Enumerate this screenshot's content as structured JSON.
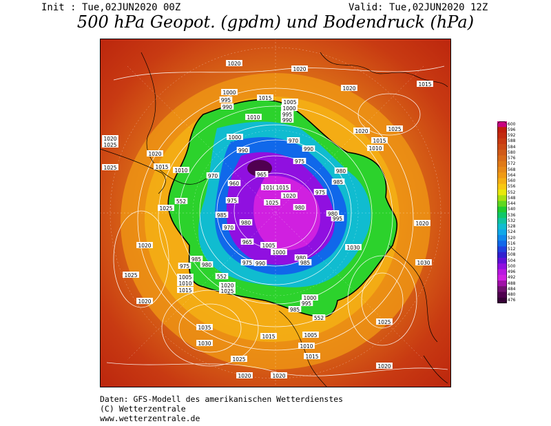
{
  "header": {
    "init": "Init : Tue,02JUN2020 00Z",
    "valid": "Valid: Tue,02JUN2020 12Z",
    "title": "500 hPa Geopot. (gpdm) und Bodendruck (hPa)"
  },
  "colorbar": {
    "levels": [
      "600",
      "596",
      "592",
      "588",
      "584",
      "580",
      "576",
      "572",
      "568",
      "564",
      "560",
      "556",
      "552",
      "548",
      "544",
      "540",
      "536",
      "532",
      "528",
      "524",
      "520",
      "516",
      "512",
      "508",
      "504",
      "500",
      "496",
      "492",
      "488",
      "484",
      "480",
      "476"
    ],
    "colors": [
      "#c90080",
      "#bf1e0d",
      "#c22a10",
      "#c83a12",
      "#cc4a15",
      "#d05a18",
      "#d86a18",
      "#e07a18",
      "#e88a18",
      "#f09a14",
      "#f5b014",
      "#f8c812",
      "#e8e80a",
      "#a8e010",
      "#60d820",
      "#20cc30",
      "#10c868",
      "#10c4a0",
      "#10bcd0",
      "#10a8e8",
      "#1088ec",
      "#1068ea",
      "#2040e0",
      "#3020d0",
      "#6010d8",
      "#9010e0",
      "#b818e0",
      "#d020e0",
      "#a010a8",
      "#701070",
      "#500050",
      "#380038"
    ]
  },
  "map": {
    "labels": [
      "1000",
      "1005",
      "1010",
      "1015",
      "1020",
      "1025",
      "1030",
      "1035",
      "995",
      "990",
      "985",
      "980",
      "975",
      "970",
      "965",
      "960",
      "955",
      "552"
    ],
    "pressure_labels": [
      {
        "text": "1020"
      },
      {
        "text": "1020"
      },
      {
        "text": "1020"
      },
      {
        "text": "1015"
      },
      {
        "text": "1000"
      },
      {
        "text": "995"
      },
      {
        "text": "990"
      },
      {
        "text": "1015"
      },
      {
        "text": "1005"
      },
      {
        "text": "1000"
      },
      {
        "text": "995"
      },
      {
        "text": "990"
      },
      {
        "text": "1010"
      },
      {
        "text": "1020"
      },
      {
        "text": "1025"
      },
      {
        "text": "1015"
      },
      {
        "text": "1010"
      },
      {
        "text": "1020"
      },
      {
        "text": "1025"
      },
      {
        "text": "1020"
      },
      {
        "text": "1015"
      },
      {
        "text": "1010"
      },
      {
        "text": "1025"
      },
      {
        "text": "1000"
      },
      {
        "text": "990"
      },
      {
        "text": "970"
      },
      {
        "text": "990"
      },
      {
        "text": "975"
      },
      {
        "text": "965"
      },
      {
        "text": "970"
      },
      {
        "text": "960"
      },
      {
        "text": "975"
      },
      {
        "text": "1010"
      },
      {
        "text": "1015"
      },
      {
        "text": "1020"
      },
      {
        "text": "1025"
      },
      {
        "text": "980"
      },
      {
        "text": "975"
      },
      {
        "text": "985"
      },
      {
        "text": "995"
      },
      {
        "text": "1020"
      },
      {
        "text": "1030"
      },
      {
        "text": "985"
      },
      {
        "text": "970"
      },
      {
        "text": "980"
      },
      {
        "text": "965"
      },
      {
        "text": "1005"
      },
      {
        "text": "1000"
      },
      {
        "text": "990"
      },
      {
        "text": "975"
      },
      {
        "text": "980"
      },
      {
        "text": "985"
      },
      {
        "text": "980"
      },
      {
        "text": "1025"
      },
      {
        "text": "1020"
      },
      {
        "text": "1025"
      },
      {
        "text": "985"
      },
      {
        "text": "980"
      },
      {
        "text": "975"
      },
      {
        "text": "1005"
      },
      {
        "text": "1010"
      },
      {
        "text": "1015"
      },
      {
        "text": "1020"
      },
      {
        "text": "1025"
      },
      {
        "text": "1035"
      },
      {
        "text": "1030"
      },
      {
        "text": "1025"
      },
      {
        "text": "1020"
      },
      {
        "text": "1020"
      },
      {
        "text": "1015"
      },
      {
        "text": "1010"
      },
      {
        "text": "1005"
      },
      {
        "text": "1015"
      },
      {
        "text": "1020"
      },
      {
        "text": "1025"
      },
      {
        "text": "1020"
      },
      {
        "text": "1030"
      },
      {
        "text": "552"
      },
      {
        "text": "552"
      },
      {
        "text": "552"
      },
      {
        "text": "980"
      },
      {
        "text": "985"
      },
      {
        "text": "995"
      },
      {
        "text": "1000"
      }
    ]
  },
  "footer": {
    "line1": "Daten: GFS-Modell des amerikanischen Wetterdienstes",
    "line2": "(C) Wetterzentrale",
    "line3": "www.wetterzentrale.de"
  }
}
